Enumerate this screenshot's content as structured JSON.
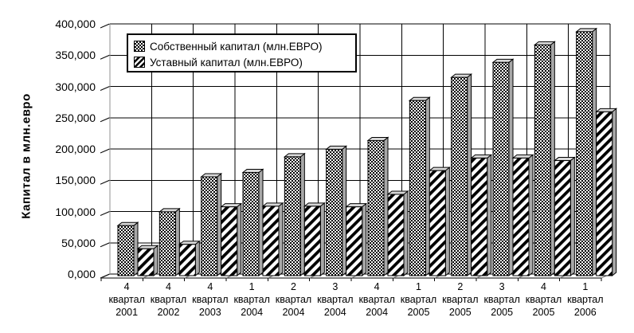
{
  "chart_data": {
    "type": "bar",
    "title": "",
    "xlabel": "",
    "ylabel": "Капитал в млн.евро",
    "ylim": [
      0,
      400
    ],
    "ytick_step": 50,
    "ytick_labels": [
      "0,000",
      "50,000",
      "100,000",
      "150,000",
      "200,000",
      "250,000",
      "300,000",
      "350,000",
      "400,000"
    ],
    "grid": true,
    "legend_position": "top-left-inside",
    "style": "3d-effect black-and-white patterned bars",
    "categories": [
      [
        "4",
        "квартал",
        "2001"
      ],
      [
        "4",
        "квартал",
        "2002"
      ],
      [
        "4",
        "квартал",
        "2003"
      ],
      [
        "1",
        "квартал",
        "2004"
      ],
      [
        "2",
        "квартал",
        "2004"
      ],
      [
        "3",
        "квартал",
        "2004"
      ],
      [
        "4",
        "квартал",
        "2004"
      ],
      [
        "1",
        "квартал",
        "2005"
      ],
      [
        "2",
        "квартал",
        "2005"
      ],
      [
        "3",
        "квартал",
        "2005"
      ],
      [
        "4",
        "квартал",
        "2005"
      ],
      [
        "1",
        "квартал",
        "2006"
      ]
    ],
    "series": [
      {
        "name": "Собственный капитал (млн.ЕВРО)",
        "pattern": "checker",
        "values": [
          80,
          102,
          158,
          165,
          190,
          202,
          216,
          280,
          317,
          341,
          369,
          390
        ]
      },
      {
        "name": "Уставный капитал (млн.ЕВРО)",
        "pattern": "diagonal-stripe",
        "values": [
          43,
          50,
          110,
          111,
          111,
          110,
          130,
          168,
          188,
          188,
          184,
          262
        ]
      }
    ],
    "colors": {
      "foreground": "#000000",
      "background": "#ffffff",
      "bar_side_face": "#a8a8a8",
      "bar_top_face": "#d8d8d8",
      "wall_edge_gray": "#909090",
      "floor_diagonal_gray": "#808080"
    }
  }
}
